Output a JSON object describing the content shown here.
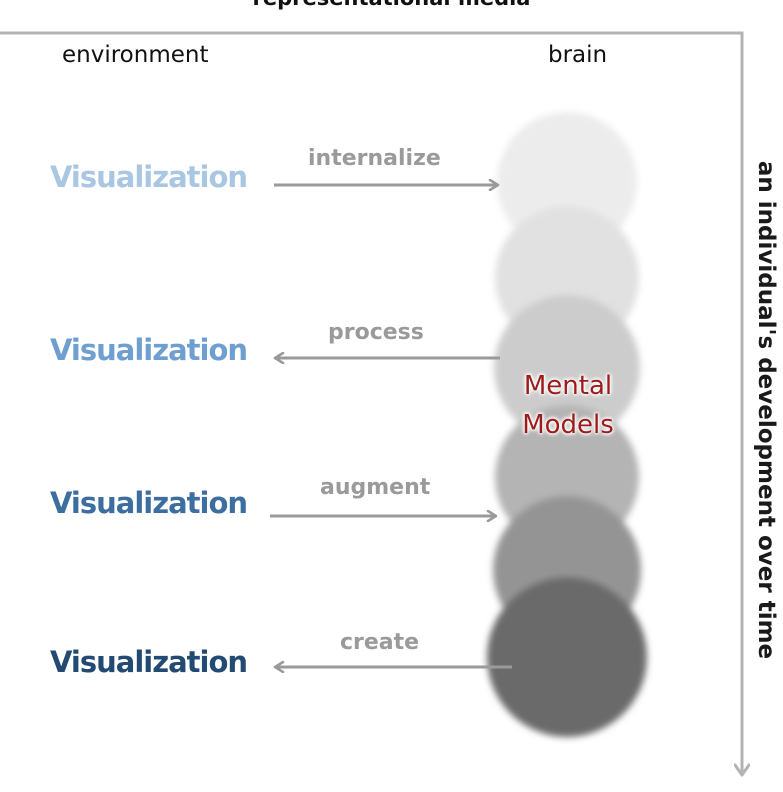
{
  "header": {
    "title": "representational media"
  },
  "columns": {
    "left": "environment",
    "right": "brain"
  },
  "axis": {
    "time_label": "an individual's development over time"
  },
  "rows": [
    {
      "label": "Visualization",
      "action": "internalize",
      "color": "#a9c6e3"
    },
    {
      "label": "Visualization",
      "action": "process",
      "color": "#6f9fd0"
    },
    {
      "label": "Visualization",
      "action": "augment",
      "color": "#3c6e9f"
    },
    {
      "label": "Visualization",
      "action": "create",
      "color": "#234a73"
    }
  ],
  "brain": {
    "mental_models": "Mental\nModels"
  },
  "colors": {
    "arrow": "#9a9a9a",
    "axis": "#b3b3b3",
    "mental_text": "#9e1b1b"
  }
}
